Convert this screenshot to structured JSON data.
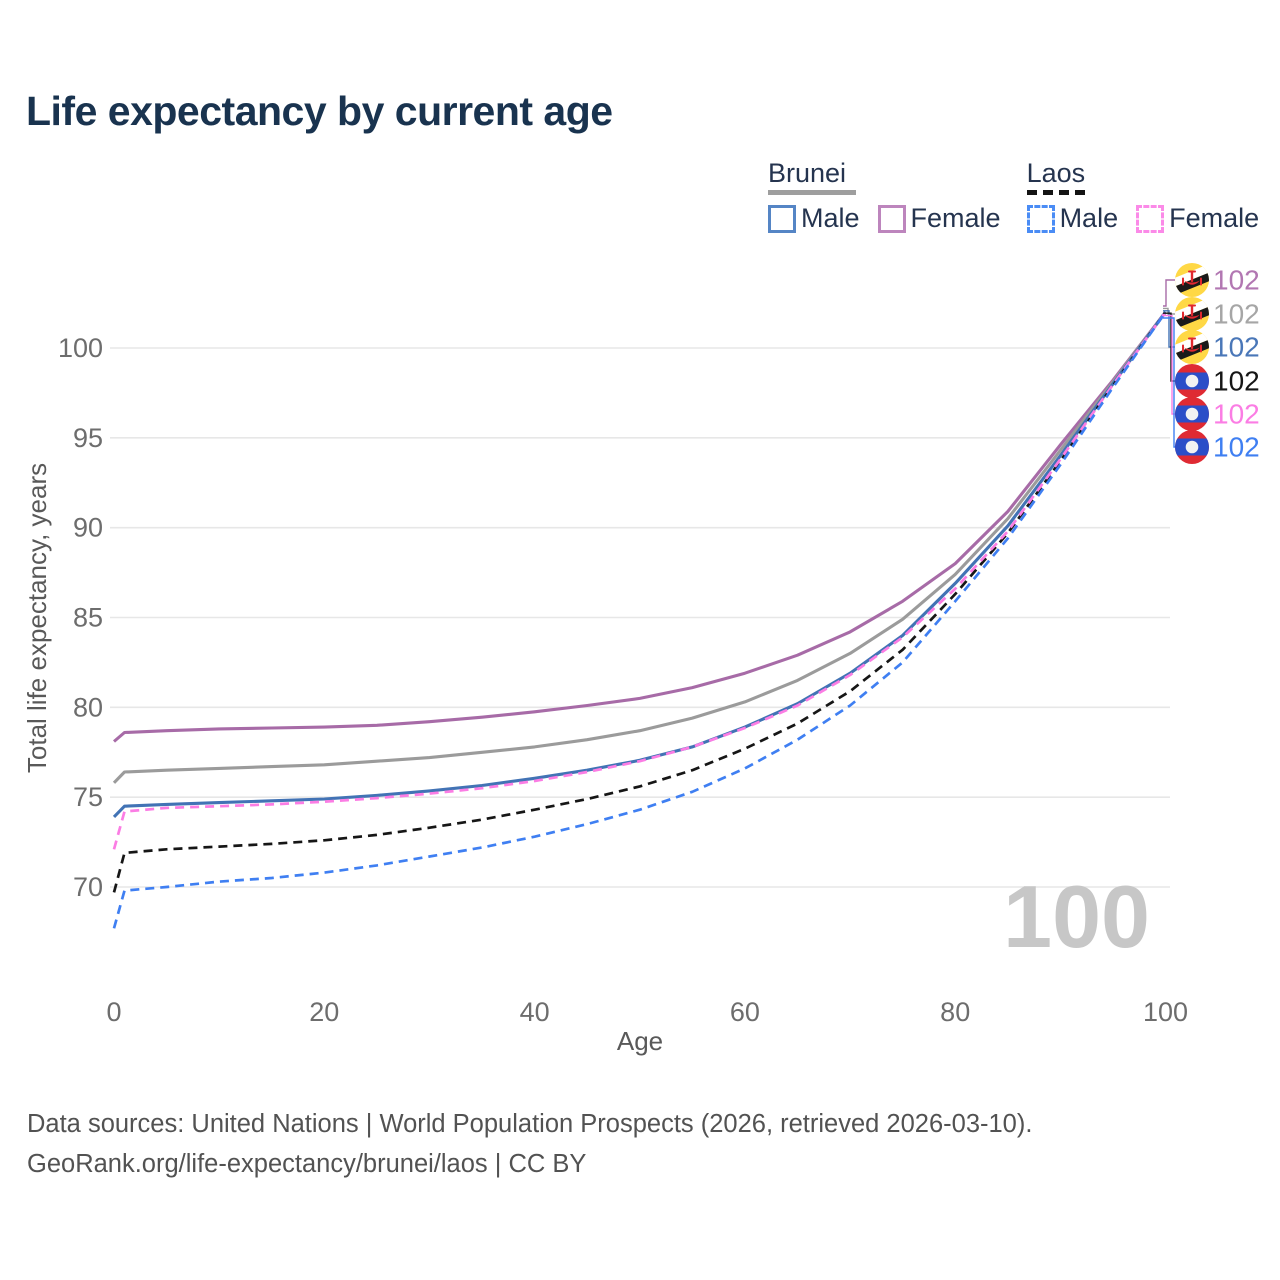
{
  "header": {
    "title": "Life expectancy by current age"
  },
  "legend": {
    "groups": [
      {
        "country": "Brunei",
        "line_style": "solid",
        "underline_color": "#9e9e9e",
        "items": [
          {
            "label": "Male",
            "color": "#5585c5",
            "dashed": false
          },
          {
            "label": "Female",
            "color": "#bd85bd",
            "dashed": false
          }
        ]
      },
      {
        "country": "Laos",
        "line_style": "dashed",
        "underline_color": "#141414",
        "items": [
          {
            "label": "Male",
            "color": "#4a8cf5",
            "dashed": true
          },
          {
            "label": "Female",
            "color": "#fb8ae8",
            "dashed": true
          }
        ]
      }
    ]
  },
  "chart_data": {
    "type": "line",
    "title": "Life expectancy by current age",
    "xlabel": "Age",
    "ylabel": "Total life expectancy, years",
    "xlim": [
      0,
      100
    ],
    "ylim": [
      66,
      105
    ],
    "x_ticks": [
      0,
      20,
      40,
      60,
      80,
      100
    ],
    "y_ticks": [
      70,
      75,
      80,
      85,
      90,
      95,
      100
    ],
    "grid": true,
    "legend_position": "top-right",
    "watermark": "100",
    "x": [
      0,
      1,
      5,
      10,
      15,
      20,
      25,
      30,
      35,
      40,
      45,
      50,
      55,
      60,
      65,
      70,
      75,
      80,
      85,
      90,
      95,
      100
    ],
    "series": [
      {
        "name": "Brunei Female",
        "country": "Brunei",
        "sex": "Female",
        "color": "#a76ba7",
        "label_color": "#b277b2",
        "dashed": false,
        "end_label": "102",
        "values": [
          78.1,
          78.6,
          78.7,
          78.8,
          78.85,
          78.9,
          79.0,
          79.2,
          79.45,
          79.75,
          80.1,
          80.5,
          81.1,
          81.9,
          82.9,
          84.2,
          85.9,
          88.0,
          90.9,
          94.6,
          98.2,
          102
        ]
      },
      {
        "name": "Brunei Both sexes",
        "country": "Brunei",
        "sex": "Both",
        "color": "#9b9b9b",
        "label_color": "#a6a6a6",
        "dashed": false,
        "end_label": "102",
        "values": [
          75.8,
          76.4,
          76.5,
          76.6,
          76.7,
          76.8,
          77.0,
          77.2,
          77.5,
          77.8,
          78.2,
          78.7,
          79.4,
          80.3,
          81.5,
          83.0,
          84.9,
          87.4,
          90.5,
          94.3,
          98.1,
          102
        ]
      },
      {
        "name": "Brunei Male",
        "country": "Brunei",
        "sex": "Male",
        "color": "#4273b5",
        "label_color": "#4a77b8",
        "dashed": false,
        "end_label": "102",
        "values": [
          73.9,
          74.5,
          74.6,
          74.7,
          74.8,
          74.9,
          75.1,
          75.35,
          75.65,
          76.05,
          76.5,
          77.05,
          77.8,
          78.9,
          80.2,
          81.9,
          84.0,
          86.9,
          90.1,
          94.0,
          98.0,
          102
        ]
      },
      {
        "name": "Laos Both sexes",
        "country": "Laos",
        "sex": "Both",
        "color": "#161616",
        "label_color": "#161616",
        "dashed": true,
        "end_label": "102",
        "values": [
          69.7,
          71.9,
          72.1,
          72.25,
          72.4,
          72.6,
          72.9,
          73.3,
          73.75,
          74.3,
          74.9,
          75.6,
          76.5,
          77.7,
          79.1,
          80.9,
          83.2,
          86.3,
          89.7,
          93.7,
          97.9,
          102
        ]
      },
      {
        "name": "Laos Female",
        "country": "Laos",
        "sex": "Female",
        "color": "#fb7de4",
        "label_color": "#fb7de4",
        "dashed": true,
        "end_label": "102",
        "values": [
          72.1,
          74.2,
          74.4,
          74.5,
          74.6,
          74.75,
          74.95,
          75.2,
          75.5,
          75.9,
          76.4,
          77.0,
          77.8,
          78.85,
          80.1,
          81.8,
          83.9,
          86.6,
          89.8,
          93.8,
          97.95,
          102
        ]
      },
      {
        "name": "Laos Male",
        "country": "Laos",
        "sex": "Male",
        "color": "#3f7ff2",
        "label_color": "#3f7ff2",
        "dashed": true,
        "end_label": "102",
        "values": [
          67.7,
          69.8,
          70.0,
          70.3,
          70.5,
          70.8,
          71.2,
          71.7,
          72.2,
          72.8,
          73.5,
          74.3,
          75.3,
          76.6,
          78.2,
          80.1,
          82.5,
          85.9,
          89.4,
          93.5,
          97.8,
          102
        ]
      }
    ],
    "flag_colors": {
      "brunei_yellow": "#FFD845",
      "brunei_white": "#ffffff",
      "brunei_black": "#1a1a1a",
      "brunei_red": "#e0282e",
      "laos_red": "#df2a33",
      "laos_blue": "#2b4ec8",
      "laos_white": "#f2f2f2"
    },
    "axis_color": "#6d6d6d",
    "grid_color": "#e7e7e7",
    "watermark_color": "#c7c7c7"
  },
  "footer": {
    "line1": "Data sources: United Nations | World Population Prospects (2026, retrieved 2026-03-10).",
    "line2": "GeoRank.org/life-expectancy/brunei/laos | CC BY"
  }
}
